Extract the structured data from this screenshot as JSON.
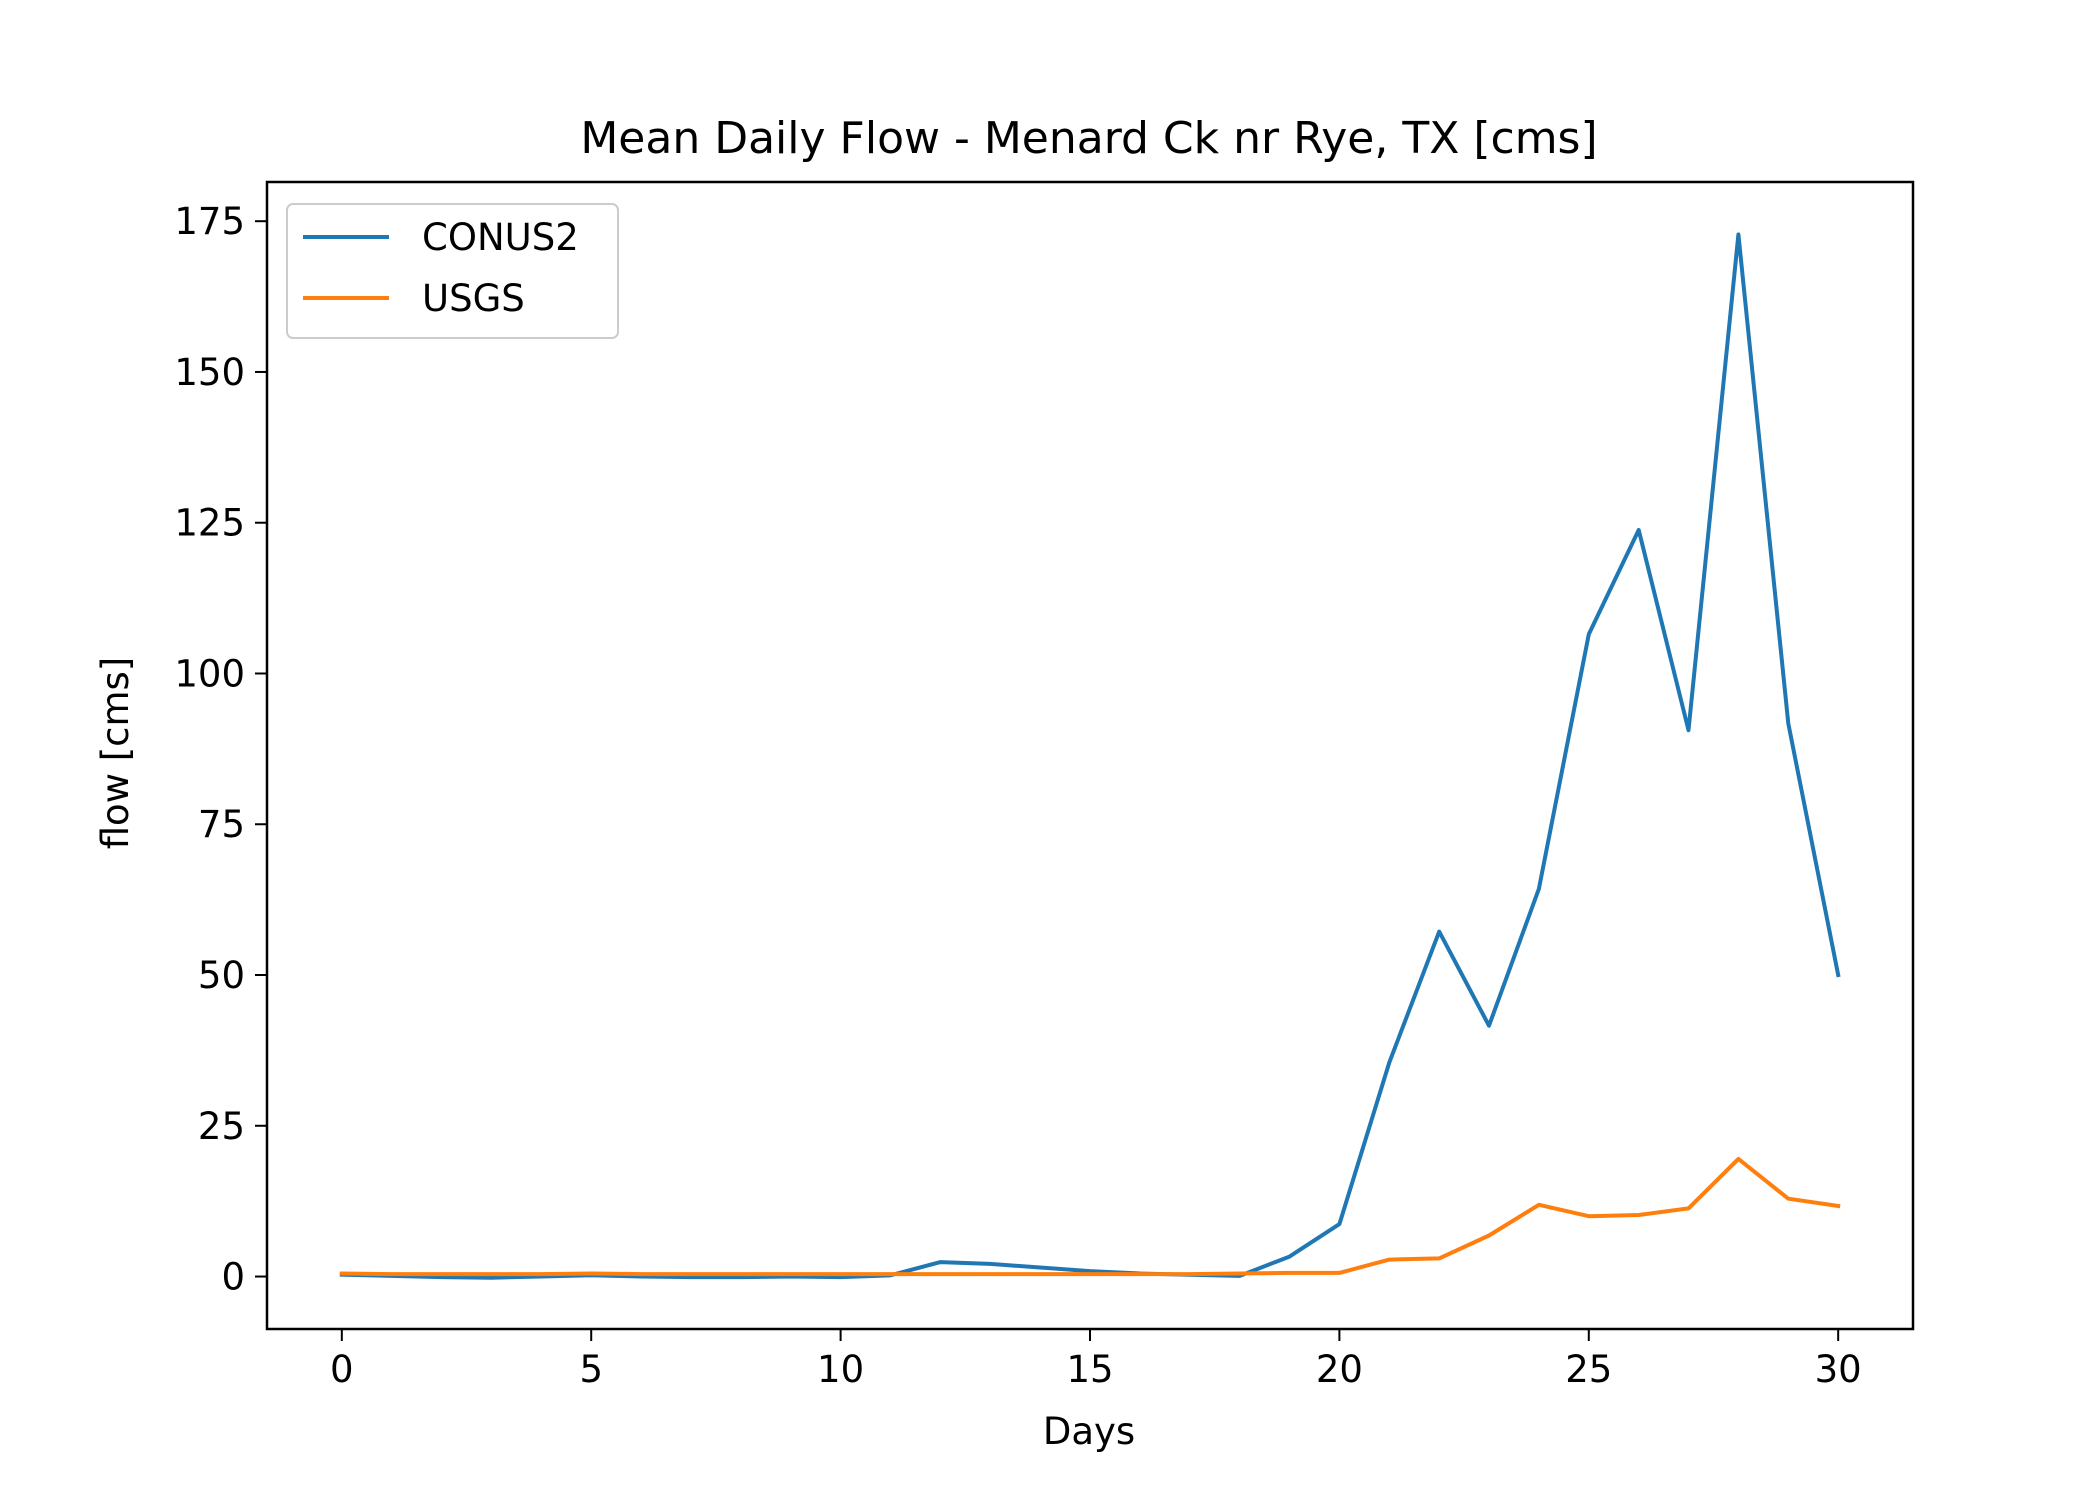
{
  "chart_data": {
    "type": "line",
    "title": "Mean Daily Flow - Menard Ck nr Rye, TX [cms]",
    "xlabel": "Days",
    "ylabel": "flow [cms]",
    "xlim": [
      -1.5,
      31.5
    ],
    "ylim": [
      -8.7,
      181.5
    ],
    "xticks": [
      0,
      5,
      10,
      15,
      20,
      25,
      30
    ],
    "yticks": [
      0,
      25,
      50,
      75,
      100,
      125,
      150,
      175
    ],
    "grid": false,
    "legend_position": "top-left",
    "x": [
      0,
      1,
      2,
      3,
      4,
      5,
      6,
      7,
      8,
      9,
      10,
      11,
      12,
      13,
      14,
      15,
      16,
      17,
      18,
      19,
      20,
      21,
      22,
      23,
      24,
      25,
      26,
      27,
      28,
      29,
      30
    ],
    "series": [
      {
        "name": "CONUS2",
        "color": "#1f77b4",
        "values": [
          0.3,
          0.1,
          -0.1,
          -0.2,
          0.0,
          0.2,
          0.0,
          -0.1,
          -0.1,
          0.0,
          -0.1,
          0.2,
          2.4,
          2.1,
          1.5,
          0.9,
          0.5,
          0.3,
          0.1,
          3.3,
          8.7,
          35.5,
          57.2,
          41.6,
          64.3,
          106.5,
          123.8,
          90.6,
          172.8,
          91.7,
          50.0
        ]
      },
      {
        "name": "USGS",
        "color": "#ff7f0e",
        "values": [
          0.5,
          0.4,
          0.4,
          0.4,
          0.4,
          0.5,
          0.4,
          0.4,
          0.4,
          0.4,
          0.4,
          0.4,
          0.4,
          0.4,
          0.4,
          0.4,
          0.4,
          0.4,
          0.5,
          0.6,
          0.6,
          2.8,
          3.0,
          6.8,
          11.9,
          10.0,
          10.2,
          11.3,
          19.5,
          12.9,
          11.7
        ]
      }
    ]
  }
}
